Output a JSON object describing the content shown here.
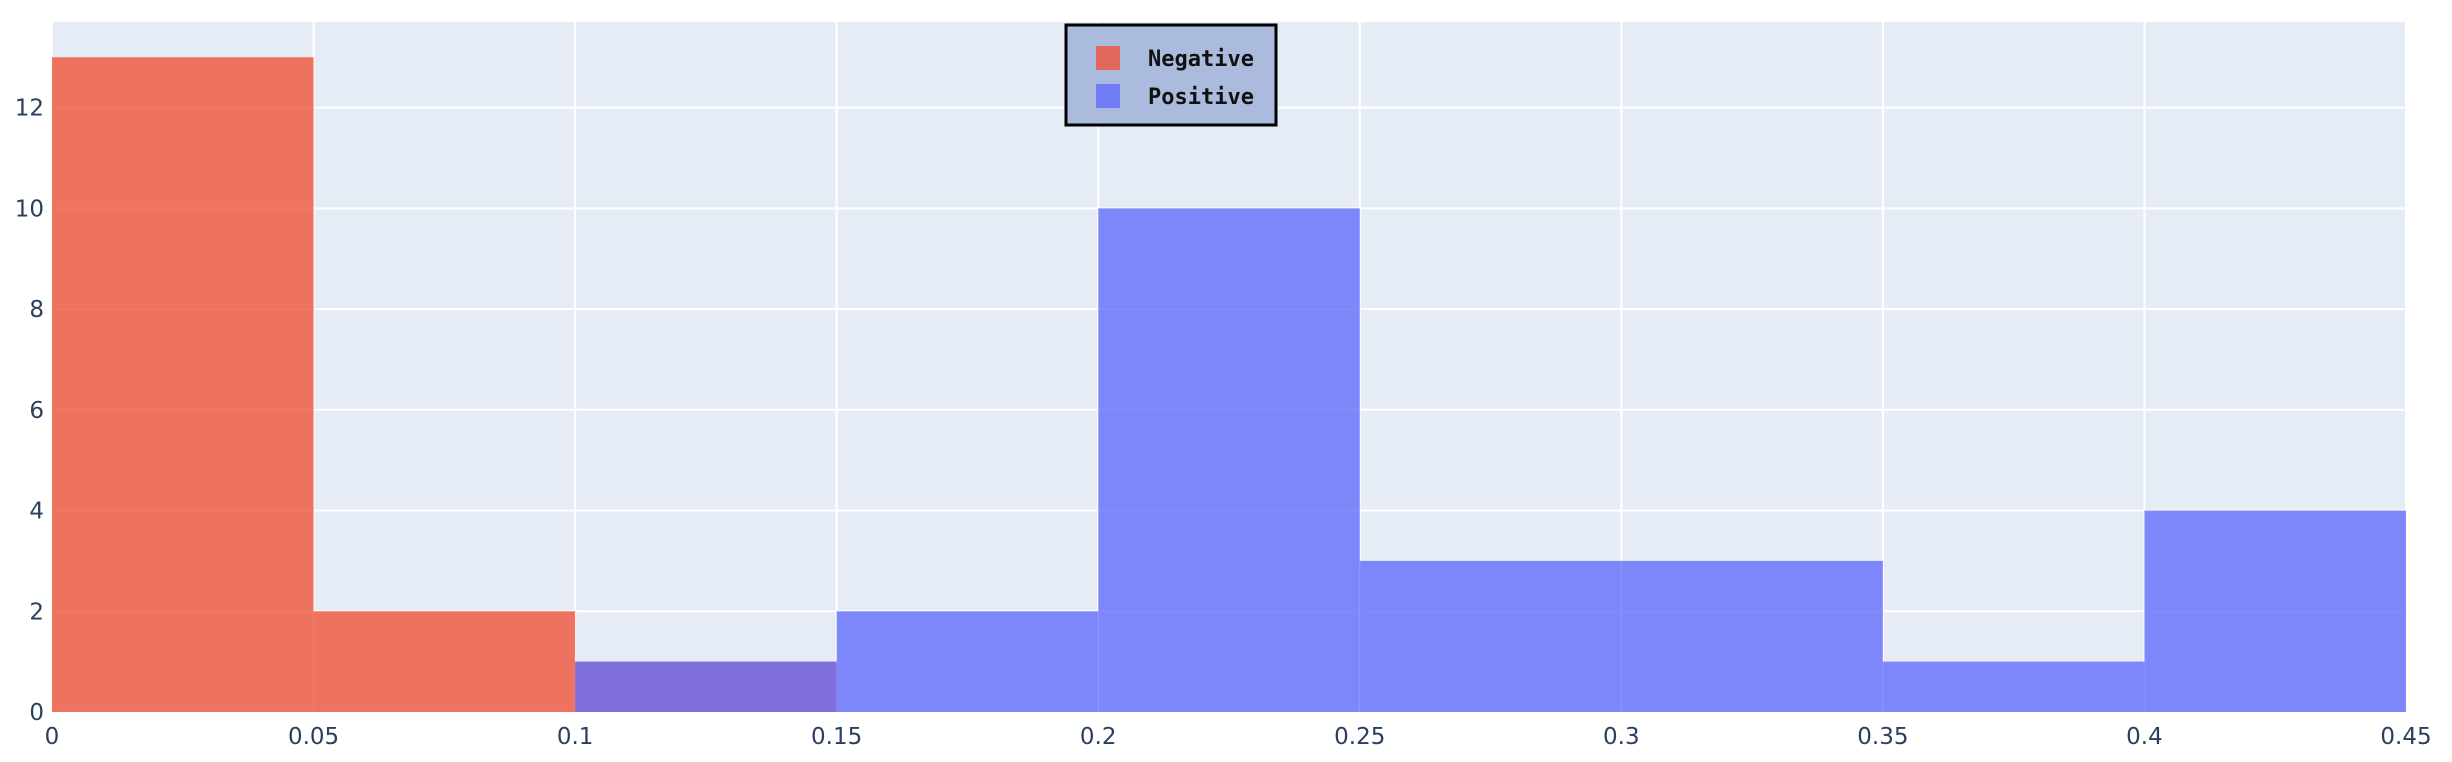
{
  "chart_data": {
    "type": "bar",
    "bin_edges": [
      0,
      0.05,
      0.1,
      0.15,
      0.2,
      0.25,
      0.3,
      0.35,
      0.4,
      0.45
    ],
    "series": [
      {
        "name": "Negative",
        "values": [
          13,
          2,
          1,
          0,
          0,
          0,
          0,
          0,
          0
        ],
        "color": "#ef553b"
      },
      {
        "name": "Positive",
        "values": [
          0,
          0,
          1,
          2,
          10,
          3,
          3,
          1,
          4
        ],
        "color": "#636efa"
      }
    ],
    "barmode": "overlay",
    "opacity": 0.8,
    "title": "",
    "xlabel": "",
    "ylabel": "",
    "xlim": [
      0,
      0.45
    ],
    "ylim": [
      0,
      13.7
    ],
    "x_ticks": [
      {
        "value": 0,
        "label": "0"
      },
      {
        "value": 0.05,
        "label": "0.05"
      },
      {
        "value": 0.1,
        "label": "0.1"
      },
      {
        "value": 0.15,
        "label": "0.15"
      },
      {
        "value": 0.2,
        "label": "0.2"
      },
      {
        "value": 0.25,
        "label": "0.25"
      },
      {
        "value": 0.3,
        "label": "0.3"
      },
      {
        "value": 0.35,
        "label": "0.35"
      },
      {
        "value": 0.4,
        "label": "0.4"
      },
      {
        "value": 0.45,
        "label": "0.45"
      }
    ],
    "y_ticks": [
      {
        "value": 0,
        "label": "0"
      },
      {
        "value": 2,
        "label": "2"
      },
      {
        "value": 4,
        "label": "4"
      },
      {
        "value": 6,
        "label": "6"
      },
      {
        "value": 8,
        "label": "8"
      },
      {
        "value": 10,
        "label": "10"
      },
      {
        "value": 12,
        "label": "12"
      }
    ],
    "grid": true,
    "legend": {
      "position": "top-center",
      "background": "#aabbdd",
      "border": "#000000"
    },
    "plot_background": "#e5ecf6"
  }
}
